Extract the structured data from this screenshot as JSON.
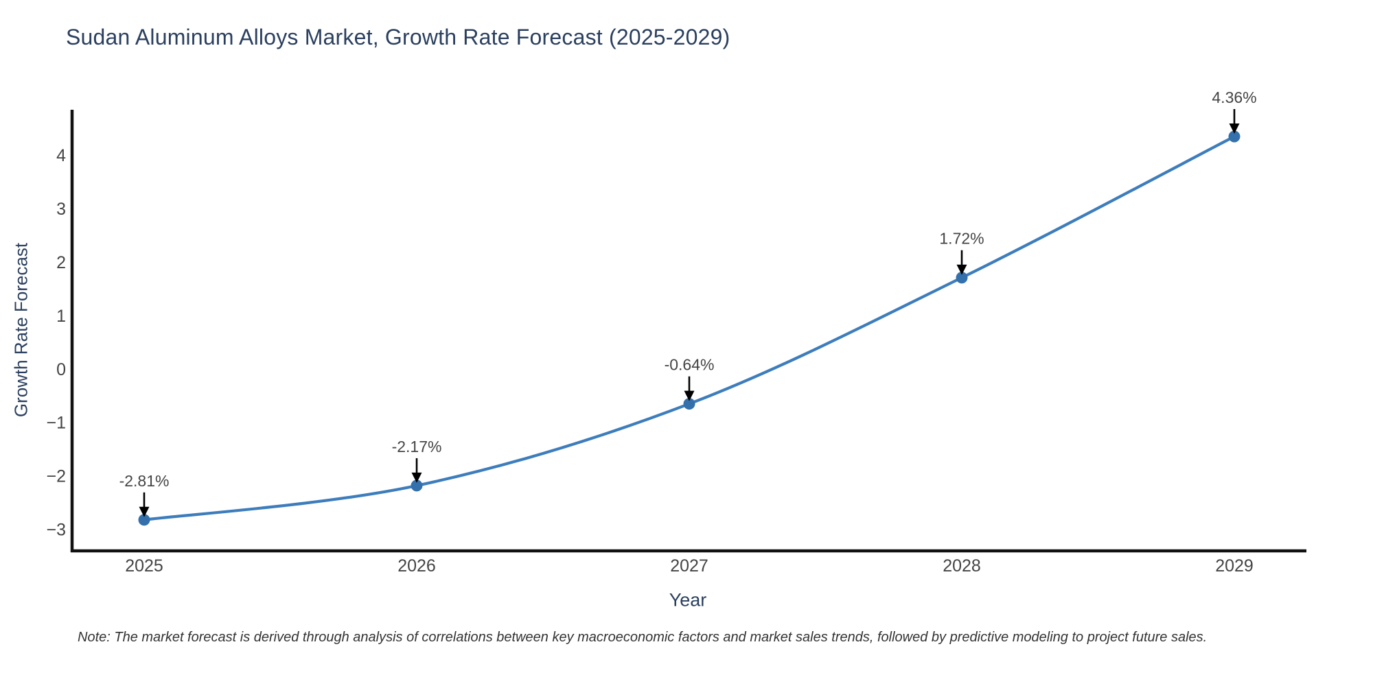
{
  "note": {
    "text": "Note: The market forecast is derived through analysis of correlations between key macroeconomic factors and market sales trends, followed by predictive modeling to project future sales."
  },
  "chart_data": {
    "type": "line",
    "title": "Sudan Aluminum Alloys Market, Growth Rate Forecast (2025-2029)",
    "xlabel": "Year",
    "ylabel": "Growth Rate Forecast",
    "categories": [
      "2025",
      "2026",
      "2027",
      "2028",
      "2029"
    ],
    "series": [
      {
        "name": "Growth Rate Forecast",
        "values": [
          -2.81,
          -2.17,
          -0.64,
          1.72,
          4.36
        ]
      }
    ],
    "point_labels": [
      "-2.81%",
      "-2.17%",
      "-0.64%",
      "1.72%",
      "4.36%"
    ],
    "yticks": {
      "values": [
        -3,
        -2,
        -1,
        0,
        1,
        2,
        3,
        4
      ],
      "labels": [
        "−3",
        "−2",
        "−1",
        "0",
        "1",
        "2",
        "3",
        "4"
      ]
    },
    "ylim": [
      -3.39,
      4.86
    ],
    "grid": false,
    "legend_position": "none",
    "line_shape": "spline",
    "colors": {
      "line": "#3d7dbc",
      "marker": "#3471ac",
      "axis_line": "#111111",
      "tick_label": "#444444",
      "annotation_text": "#444444",
      "arrow": "#000000",
      "title": "#2a3f5f"
    }
  }
}
